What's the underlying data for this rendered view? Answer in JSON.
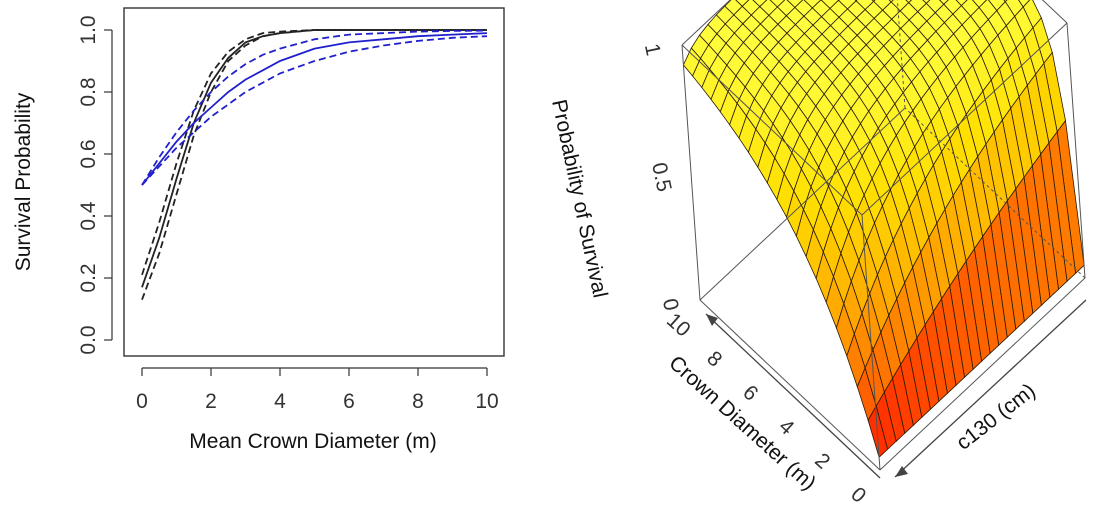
{
  "chart_data": [
    {
      "type": "line",
      "title": "",
      "xlabel": "Mean Crown Diameter (m)",
      "ylabel": "Survival Probability",
      "xlim": [
        0,
        10
      ],
      "ylim": [
        0,
        1
      ],
      "x_ticks": [
        "0",
        "2",
        "4",
        "6",
        "8",
        "10"
      ],
      "y_ticks": [
        "0.0",
        "0.2",
        "0.4",
        "0.6",
        "0.8",
        "1.0"
      ],
      "grid": false,
      "legend": "none",
      "x": [
        0,
        0.5,
        1,
        1.5,
        2,
        2.5,
        3,
        3.5,
        4,
        5,
        6,
        7,
        8,
        9,
        10
      ],
      "series": [
        {
          "color": "#222222",
          "style": "solid",
          "values": [
            0.17,
            0.33,
            0.52,
            0.7,
            0.83,
            0.91,
            0.96,
            0.98,
            0.99,
            1.0,
            1.0,
            1.0,
            1.0,
            1.0,
            1.0
          ]
        },
        {
          "color": "#222222",
          "style": "dashed",
          "values": [
            0.13,
            0.28,
            0.47,
            0.66,
            0.8,
            0.9,
            0.95,
            0.98,
            0.99,
            1.0,
            1.0,
            1.0,
            1.0,
            1.0,
            1.0
          ]
        },
        {
          "color": "#222222",
          "style": "dashed",
          "values": [
            0.21,
            0.38,
            0.57,
            0.74,
            0.86,
            0.93,
            0.97,
            0.99,
            0.995,
            1.0,
            1.0,
            1.0,
            1.0,
            1.0,
            1.0
          ]
        },
        {
          "color": "#2020cc",
          "style": "solid",
          "values": [
            0.5,
            0.57,
            0.64,
            0.7,
            0.75,
            0.8,
            0.84,
            0.87,
            0.9,
            0.94,
            0.96,
            0.97,
            0.98,
            0.985,
            0.99
          ]
        },
        {
          "color": "#2020cc",
          "style": "dashed",
          "values": [
            0.5,
            0.56,
            0.62,
            0.67,
            0.72,
            0.76,
            0.8,
            0.83,
            0.86,
            0.9,
            0.93,
            0.95,
            0.965,
            0.975,
            0.98
          ]
        },
        {
          "color": "#2020cc",
          "style": "dashed",
          "values": [
            0.5,
            0.59,
            0.67,
            0.74,
            0.8,
            0.85,
            0.89,
            0.92,
            0.94,
            0.97,
            0.985,
            0.99,
            0.995,
            0.997,
            0.998
          ]
        }
      ]
    },
    {
      "type": "surface",
      "title": "",
      "zlabel": "Probability of Survival",
      "xlabel": "Crown Diameter (m)",
      "ylabel": "c130 (cm)",
      "z_ticks": [
        "0",
        "0.5",
        "1"
      ],
      "x_ticks": [
        "0",
        "2",
        "4",
        "6",
        "8",
        "10"
      ],
      "xlim": [
        0,
        10
      ],
      "zlim": [
        0,
        1
      ],
      "colormap": [
        "#ff0000",
        "#ff6a00",
        "#ffae00",
        "#ffe000",
        "#ffff40"
      ]
    }
  ]
}
